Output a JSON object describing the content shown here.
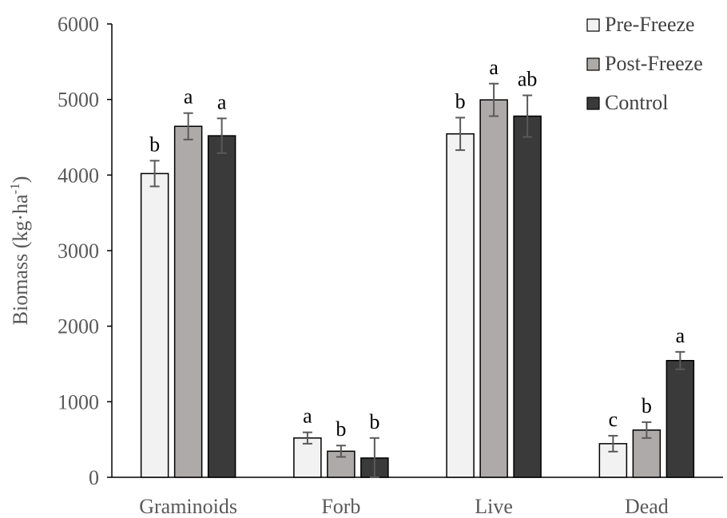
{
  "chart_data": {
    "type": "bar",
    "title": "",
    "xlabel": "",
    "ylabel": "Biomass (kg·ha",
    "ylabel_superscript": "-1",
    "ylabel_suffix": ")",
    "ylim": [
      0,
      6000
    ],
    "yticks": [
      0,
      1000,
      2000,
      3000,
      4000,
      5000,
      6000
    ],
    "categories": [
      "Graminoids",
      "Forb",
      "Live",
      "Dead"
    ],
    "grid": false,
    "legend_position": "top-right",
    "series": [
      {
        "name": "Pre-Freeze",
        "color": "#f2f2f2",
        "values": [
          4020,
          520,
          4545,
          445
        ],
        "errors": [
          170,
          75,
          215,
          105
        ],
        "labels": [
          "b",
          "a",
          "b",
          "c"
        ]
      },
      {
        "name": "Post-Freeze",
        "color": "#aeaaaa",
        "values": [
          4645,
          345,
          4995,
          625
        ],
        "errors": [
          175,
          75,
          215,
          105
        ],
        "labels": [
          "a",
          "b",
          "a",
          "b"
        ]
      },
      {
        "name": "Control",
        "color": "#3a3a3a",
        "values": [
          4520,
          255,
          4780,
          1545
        ],
        "errors": [
          230,
          265,
          275,
          115
        ],
        "labels": [
          "a",
          "b",
          "ab",
          "a"
        ]
      }
    ]
  }
}
